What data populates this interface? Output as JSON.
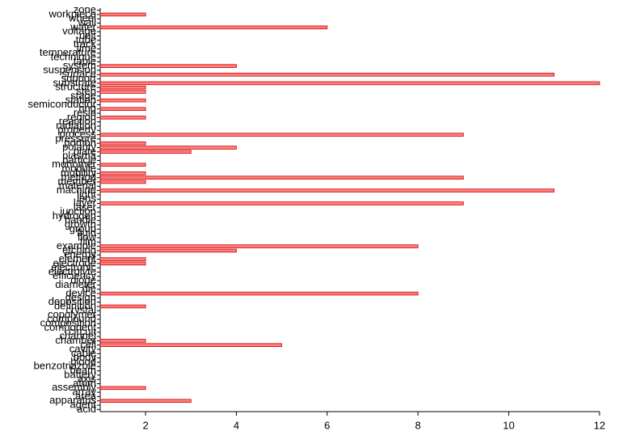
{
  "chart_data": {
    "type": "barh",
    "categories": [
      "acid",
      "agent",
      "apparatus",
      "area",
      "array",
      "assembly",
      "atom",
      "axis",
      "battery",
      "beam",
      "benzotriazole",
      "blood",
      "body",
      "cable",
      "cavity",
      "cell",
      "chamber",
      "channel",
      "circuit",
      "component",
      "composition",
      "compound",
      "copolymer",
      "crystal",
      "definition",
      "deposition",
      "design",
      "device",
      "die",
      "diameter",
      "diode",
      "efficiency",
      "electrolyte",
      "electronic",
      "electrode",
      "element",
      "energy",
      "etching",
      "example",
      "film",
      "flow",
      "fluid",
      "group",
      "growth",
      "handle",
      "hydrogen",
      "junction",
      "laser",
      "layer",
      "lens",
      "light",
      "machine",
      "material",
      "member",
      "method",
      "mobility",
      "module",
      "monomer",
      "particle",
      "plasma",
      "plate",
      "polarity",
      "portion",
      "pressure",
      "process",
      "property",
      "radiation",
      "reaction",
      "region",
      "resin",
      "ring",
      "semiconductor",
      "station",
      "stage",
      "step",
      "structure",
      "substrate",
      "support",
      "surface",
      "suspension",
      "system",
      "table",
      "technique",
      "temperature",
      "time",
      "track",
      "tube",
      "unit",
      "voltage",
      "water",
      "wall",
      "wheel",
      "workpiece",
      "zone"
    ],
    "values": [
      1,
      1,
      3,
      1,
      1,
      2,
      1,
      1,
      1,
      1,
      1,
      1,
      1,
      1,
      1,
      5,
      2,
      1,
      1,
      1,
      1,
      1,
      1,
      1,
      2,
      1,
      1,
      8,
      1,
      1,
      1,
      1,
      1,
      1,
      2,
      2,
      1,
      4,
      8,
      1,
      1,
      1,
      1,
      1,
      1,
      1,
      1,
      1,
      9,
      1,
      1,
      11,
      1,
      2,
      9,
      2,
      1,
      2,
      1,
      1,
      3,
      4,
      2,
      1,
      9,
      1,
      1,
      1,
      2,
      1,
      2,
      1,
      2,
      1,
      2,
      2,
      12,
      1,
      11,
      1,
      4,
      1,
      1,
      1,
      1,
      1,
      1,
      1,
      1,
      6,
      1,
      1,
      2,
      1
    ],
    "color": "#ff7f7f",
    "xlim": [
      1,
      12
    ],
    "xticks": [
      2,
      4,
      6,
      8,
      10,
      12
    ]
  }
}
